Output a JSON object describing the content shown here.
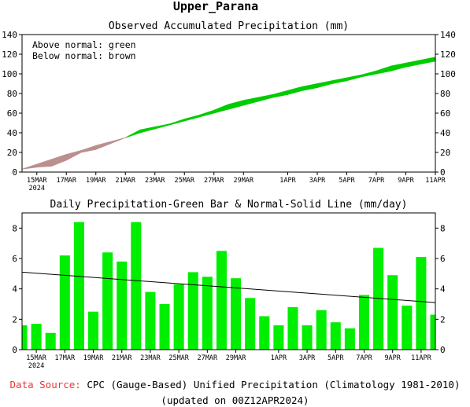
{
  "page_title": "Upper_Parana",
  "footer": {
    "source_label": "Data Source:",
    "source_text": " CPC (Gauge-Based) Unified Precipitation (Climatology 1981-2010)",
    "updated": "(updated on 00Z12APR2024)"
  },
  "colors": {
    "above": "#00cc00",
    "below": "#bc8f8f",
    "bar": "#00ee00",
    "line": "#000000",
    "source_label": "#e8373b"
  },
  "chart_data": [
    {
      "type": "area",
      "title": "Observed Accumulated Precipitation (mm)",
      "annotations": [
        "Above normal: green",
        "Below normal: brown"
      ],
      "xlim": [
        0,
        28
      ],
      "ylim": [
        0,
        140
      ],
      "yticks": [
        0,
        20,
        40,
        60,
        80,
        100,
        120,
        140
      ],
      "x_ticks": [
        {
          "x": 1,
          "label": "15MAR"
        },
        {
          "x": 3,
          "label": "17MAR"
        },
        {
          "x": 5,
          "label": "19MAR"
        },
        {
          "x": 7,
          "label": "21MAR"
        },
        {
          "x": 9,
          "label": "23MAR"
        },
        {
          "x": 11,
          "label": "25MAR"
        },
        {
          "x": 13,
          "label": "27MAR"
        },
        {
          "x": 15,
          "label": "29MAR"
        },
        {
          "x": 18,
          "label": "1APR"
        },
        {
          "x": 20,
          "label": "3APR"
        },
        {
          "x": 22,
          "label": "5APR"
        },
        {
          "x": 24,
          "label": "7APR"
        },
        {
          "x": 26,
          "label": "9APR"
        },
        {
          "x": 28,
          "label": "11APR"
        }
      ],
      "year_label": "2024",
      "series": [
        {
          "role": "normal",
          "x": [
            0,
            1,
            2,
            3,
            4,
            5,
            6,
            7,
            8,
            9,
            10,
            11,
            12,
            13,
            14,
            15,
            16,
            17,
            18,
            19,
            20,
            21,
            22,
            23,
            24,
            25,
            26,
            27,
            28
          ],
          "values": [
            3,
            8,
            13,
            18,
            22,
            27,
            31,
            35,
            40,
            44,
            48,
            52,
            56,
            60,
            64,
            68,
            72,
            76,
            79,
            83,
            86,
            90,
            93,
            97,
            100,
            103,
            107,
            110,
            113
          ]
        },
        {
          "role": "observed",
          "x": [
            0,
            1,
            2,
            3,
            4,
            5,
            6,
            7,
            8,
            9,
            10,
            11,
            12,
            13,
            14,
            15,
            16,
            17,
            18,
            19,
            20,
            21,
            22,
            23,
            24,
            25,
            26,
            27,
            28
          ],
          "values": [
            3,
            5,
            6,
            12,
            20,
            23,
            29,
            35,
            43,
            46,
            49,
            54,
            58,
            63,
            69,
            73,
            76,
            79,
            83,
            87,
            90,
            93,
            96,
            99,
            103,
            108,
            111,
            114,
            117
          ]
        }
      ]
    },
    {
      "type": "bar",
      "title": "Daily Precipitation-Green Bar & Normal-Solid Line (mm/day)",
      "xlim": [
        0,
        29
      ],
      "ylim": [
        0,
        9
      ],
      "yticks": [
        0,
        2,
        4,
        6,
        8
      ],
      "x_ticks": [
        {
          "x": 1,
          "label": "15MAR"
        },
        {
          "x": 3,
          "label": "17MAR"
        },
        {
          "x": 5,
          "label": "19MAR"
        },
        {
          "x": 7,
          "label": "21MAR"
        },
        {
          "x": 9,
          "label": "23MAR"
        },
        {
          "x": 11,
          "label": "25MAR"
        },
        {
          "x": 13,
          "label": "27MAR"
        },
        {
          "x": 15,
          "label": "29MAR"
        },
        {
          "x": 18,
          "label": "1APR"
        },
        {
          "x": 20,
          "label": "3APR"
        },
        {
          "x": 22,
          "label": "5APR"
        },
        {
          "x": 24,
          "label": "7APR"
        },
        {
          "x": 26,
          "label": "9APR"
        },
        {
          "x": 28,
          "label": "11APR"
        }
      ],
      "year_label": "2024",
      "series": [
        {
          "role": "daily",
          "x": [
            0,
            1,
            2,
            3,
            4,
            5,
            6,
            7,
            8,
            9,
            10,
            11,
            12,
            13,
            14,
            15,
            16,
            17,
            18,
            19,
            20,
            21,
            22,
            23,
            24,
            25,
            26,
            27,
            28,
            29
          ],
          "values": [
            1.6,
            1.7,
            1.1,
            6.2,
            8.4,
            2.5,
            6.4,
            5.8,
            8.4,
            3.8,
            3.0,
            4.3,
            5.1,
            4.8,
            6.5,
            4.7,
            3.4,
            2.2,
            1.6,
            2.8,
            1.6,
            2.6,
            1.8,
            1.4,
            3.6,
            6.7,
            4.9,
            2.9,
            6.1,
            2.3
          ]
        },
        {
          "role": "normal",
          "x": [
            0,
            29
          ],
          "values": [
            5.1,
            3.1
          ]
        }
      ]
    }
  ]
}
